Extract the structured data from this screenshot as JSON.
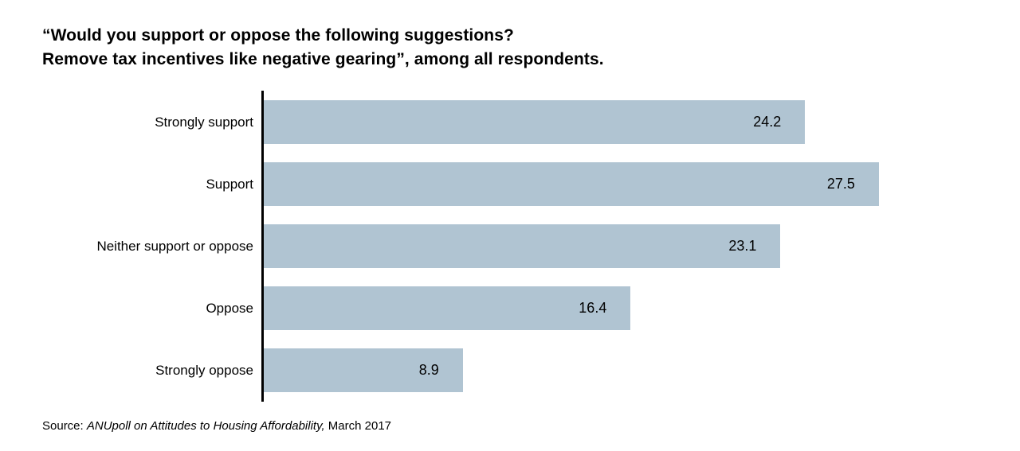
{
  "title": {
    "line1": "“Would you support or oppose the following suggestions?",
    "line2": "Remove tax incentives like negative gearing”, among all respondents."
  },
  "chart_data": {
    "type": "bar",
    "orientation": "horizontal",
    "title": "“Would you support or oppose the following suggestions? Remove tax incentives like negative gearing”, among all respondents.",
    "categories": [
      "Strongly support",
      "Support",
      "Neither support or oppose",
      "Oppose",
      "Strongly oppose"
    ],
    "values": [
      24.2,
      27.5,
      23.1,
      16.4,
      8.9
    ],
    "xlim": [
      0,
      30
    ],
    "xlabel": "",
    "ylabel": "",
    "grid": false,
    "legend": false,
    "bar_color": "#b0c4d2",
    "axis_color": "#000000",
    "value_label_position": "inside-end"
  },
  "source": {
    "prefix": "Source: ",
    "italic": "ANUpoll on Attitudes to Housing Affordability,",
    "suffix": " March 2017"
  }
}
